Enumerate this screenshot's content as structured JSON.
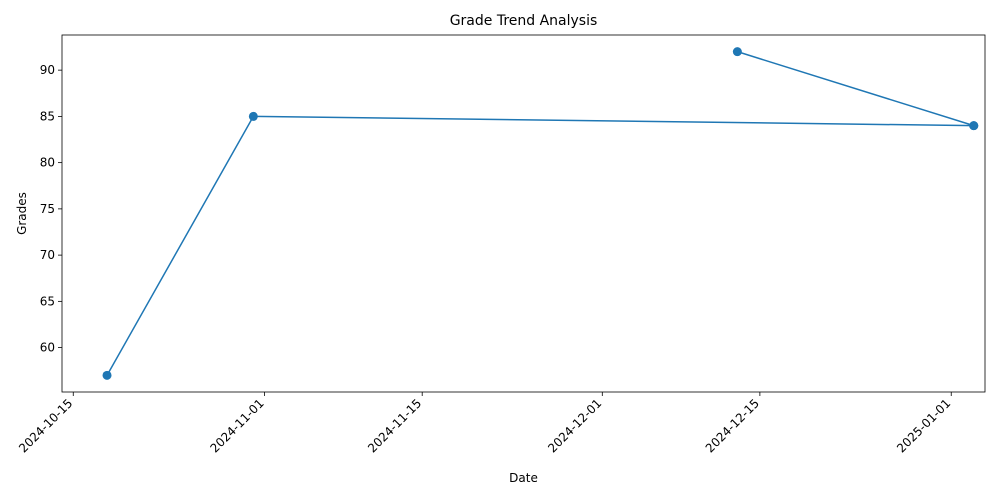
{
  "chart_data": {
    "type": "line",
    "title": "Grade Trend Analysis",
    "xlabel": "Date",
    "ylabel": "Grades",
    "x_ticks": [
      "2024-10-15",
      "2024-11-01",
      "2024-11-15",
      "2024-12-01",
      "2024-12-15",
      "2025-01-01"
    ],
    "y_ticks": [
      60,
      65,
      70,
      75,
      80,
      85,
      90
    ],
    "xlim": [
      "2024-10-14",
      "2025-01-04"
    ],
    "ylim": [
      55.2,
      93.8
    ],
    "series": [
      {
        "color": "#1f77b4",
        "marker": "circle",
        "points": [
          {
            "x": "2024-10-18",
            "y": 57
          },
          {
            "x": "2024-10-31",
            "y": 85
          },
          {
            "x": "2025-01-03",
            "y": 84
          },
          {
            "x": "2024-12-13",
            "y": 92
          },
          {
            "x": "2025-01-03",
            "y": 84
          }
        ]
      }
    ],
    "grid": false,
    "legend": "none"
  }
}
